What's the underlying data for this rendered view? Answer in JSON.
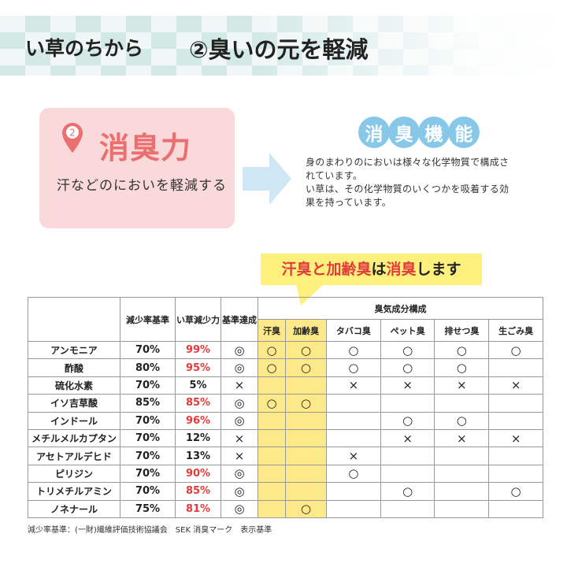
{
  "header": {
    "category": "い草のちから",
    "title": "②臭いの元を軽減"
  },
  "feature": {
    "number": "2",
    "name": "消臭力",
    "description": "汗などのにおいを軽減する"
  },
  "function": {
    "badge": [
      "消",
      "臭",
      "機",
      "能"
    ],
    "text_lines": [
      "身のまわりのにおいは様々な化学物質で構成さ",
      "れています。",
      "い草は、その化学物質のいくつかを吸着する効",
      "果を持っています。"
    ]
  },
  "callout": {
    "part1": "汗臭と加齢臭",
    "part2": "は",
    "part3": "消臭",
    "part4": "します"
  },
  "colors": {
    "accent_pink": "#ea7070",
    "pink_bg": "#f9d9da",
    "blue": "#87c8e8",
    "yellow": "#fde98a",
    "red": "#e23b3b"
  },
  "table": {
    "headers": {
      "standard": "減少率基準",
      "igusa": "い草減少力",
      "achieved": "基準達成",
      "composition": "臭気成分構成",
      "odors": [
        "汗臭",
        "加齢臭",
        "タバコ臭",
        "ペット臭",
        "排せつ臭",
        "生ごみ臭"
      ]
    },
    "rows": [
      {
        "name": "アンモニア",
        "standard": "70%",
        "igusa": "99%",
        "achieved": "◎",
        "odors": [
          "○",
          "○",
          "○",
          "○",
          "○",
          "○"
        ]
      },
      {
        "name": "酢酸",
        "standard": "80%",
        "igusa": "95%",
        "achieved": "◎",
        "odors": [
          "○",
          "○",
          "○",
          "○",
          "○",
          ""
        ]
      },
      {
        "name": "硫化水素",
        "standard": "70%",
        "igusa": "5%",
        "achieved": "×",
        "odors": [
          "",
          "",
          "×",
          "×",
          "×",
          "×"
        ]
      },
      {
        "name": "イソ吉草酸",
        "standard": "85%",
        "igusa": "85%",
        "achieved": "◎",
        "odors": [
          "○",
          "○",
          "",
          "",
          "",
          ""
        ]
      },
      {
        "name": "インドール",
        "standard": "70%",
        "igusa": "96%",
        "achieved": "◎",
        "odors": [
          "",
          "",
          "",
          "○",
          "○",
          ""
        ]
      },
      {
        "name": "メチルメルカプタン",
        "standard": "70%",
        "igusa": "12%",
        "achieved": "×",
        "odors": [
          "",
          "",
          "",
          "×",
          "×",
          "×"
        ]
      },
      {
        "name": "アセトアルデヒド",
        "standard": "70%",
        "igusa": "13%",
        "achieved": "×",
        "odors": [
          "",
          "",
          "×",
          "",
          "",
          ""
        ]
      },
      {
        "name": "ピリジン",
        "standard": "70%",
        "igusa": "90%",
        "achieved": "◎",
        "odors": [
          "",
          "",
          "○",
          "",
          "",
          ""
        ]
      },
      {
        "name": "トリメチルアミン",
        "standard": "70%",
        "igusa": "85%",
        "achieved": "◎",
        "odors": [
          "",
          "",
          "",
          "○",
          "",
          "○"
        ]
      },
      {
        "name": "ノネナール",
        "standard": "75%",
        "igusa": "81%",
        "achieved": "◎",
        "odors": [
          "",
          "○",
          "",
          "",
          "",
          ""
        ]
      }
    ]
  },
  "footnote": "減少率基準：(一財)繊維評価技術協議会　SEK 消臭マーク　表示基準"
}
